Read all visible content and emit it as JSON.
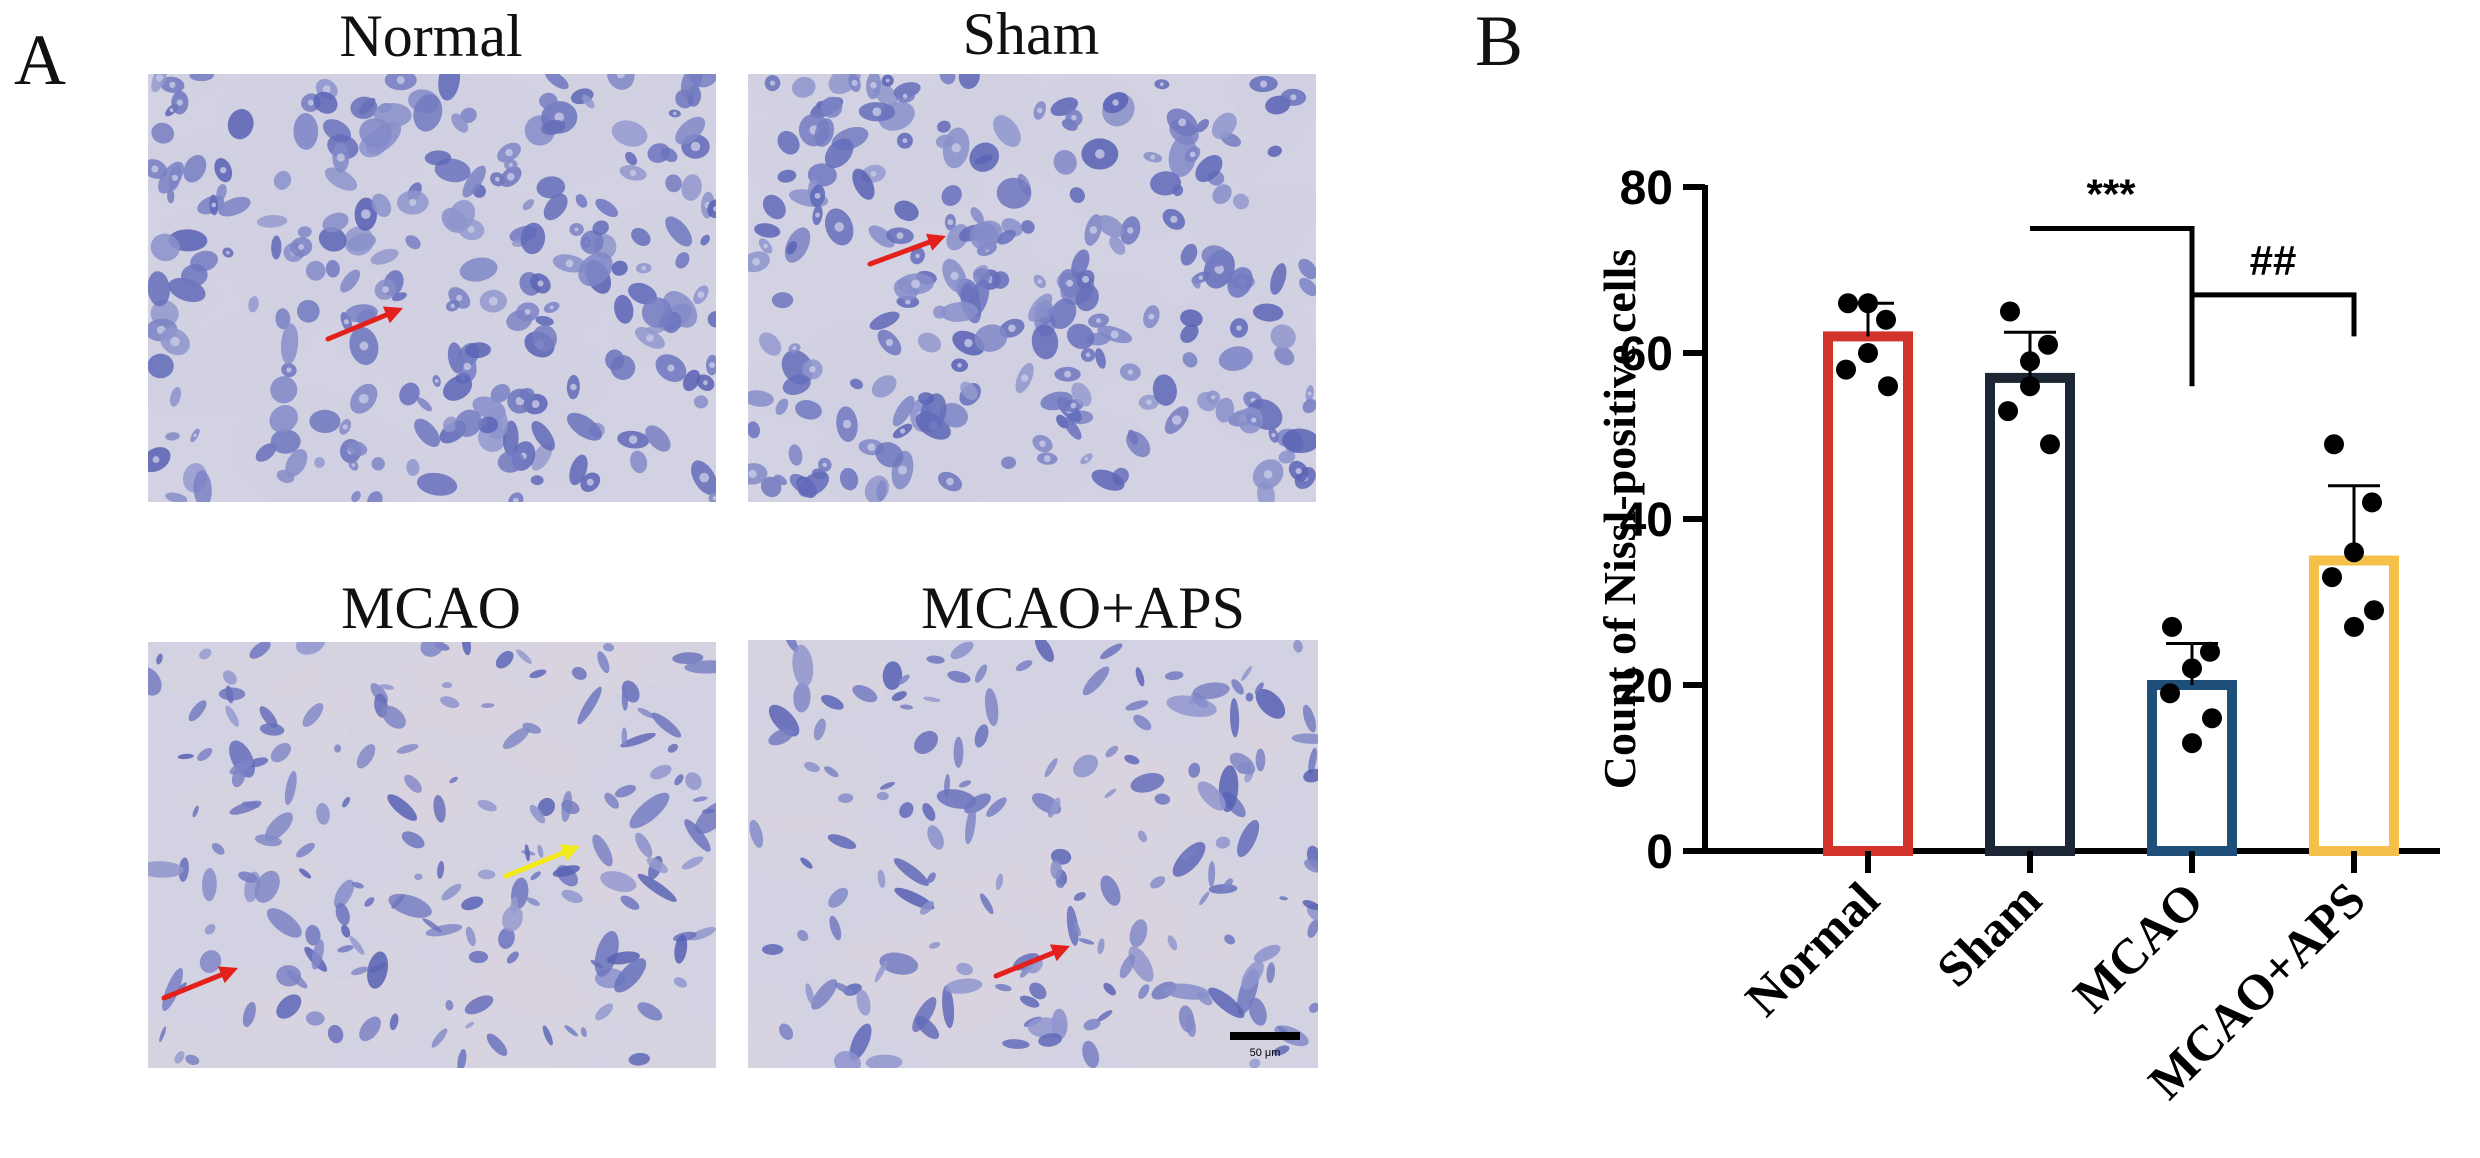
{
  "panel_a": {
    "letter": "A",
    "images": [
      {
        "title": "Normal",
        "arrows": [
          "red"
        ],
        "scale_bar": ""
      },
      {
        "title": "Sham",
        "arrows": [
          "red"
        ],
        "scale_bar": ""
      },
      {
        "title": "MCAO",
        "arrows": [
          "red",
          "yellow"
        ],
        "scale_bar": ""
      },
      {
        "title": "MCAO+APS",
        "arrows": [
          "red"
        ],
        "scale_bar": "50 μm"
      }
    ]
  },
  "panel_b": {
    "letter": "B"
  },
  "colors": {
    "normal": "#d2332b",
    "sham": "#1c2634",
    "mcao": "#1e4f7a",
    "mcao_aps": "#f4c04a",
    "dots": "#000000",
    "tissue": "#d3d2e3",
    "cells": "#7e86c8",
    "arrow_red": "#e3201b",
    "arrow_yellow": "#f2e81a"
  },
  "chart_data": {
    "type": "bar",
    "title": "",
    "xlabel": "",
    "ylabel": "Count of Nissl-positive cells",
    "ylim": [
      0,
      80
    ],
    "yticks": [
      "0",
      "20",
      "40",
      "60",
      "80"
    ],
    "categories": [
      "Normal",
      "Sham",
      "MCAO",
      "MCAO+APS"
    ],
    "values": [
      62,
      57,
      20,
      35
    ],
    "errors": [
      4,
      5.5,
      5,
      9
    ],
    "points": [
      [
        66,
        64,
        66,
        58,
        56,
        60
      ],
      [
        65,
        61,
        56,
        53,
        49,
        59
      ],
      [
        27,
        24,
        22,
        19,
        16,
        13
      ],
      [
        49,
        42,
        36,
        33,
        29,
        27
      ]
    ],
    "bar_colors": [
      "#d2332b",
      "#1c2634",
      "#1e4f7a",
      "#f4c04a"
    ],
    "grid": false,
    "annotations": [
      {
        "text": "***",
        "from": "Sham",
        "to": "MCAO",
        "bracket_top": 75,
        "left_end": 75,
        "right_end": 63
      },
      {
        "text": "##",
        "from": "MCAO",
        "to": "MCAO+APS",
        "bracket_top": 67,
        "left_end": 56,
        "right_end": 62
      }
    ]
  }
}
